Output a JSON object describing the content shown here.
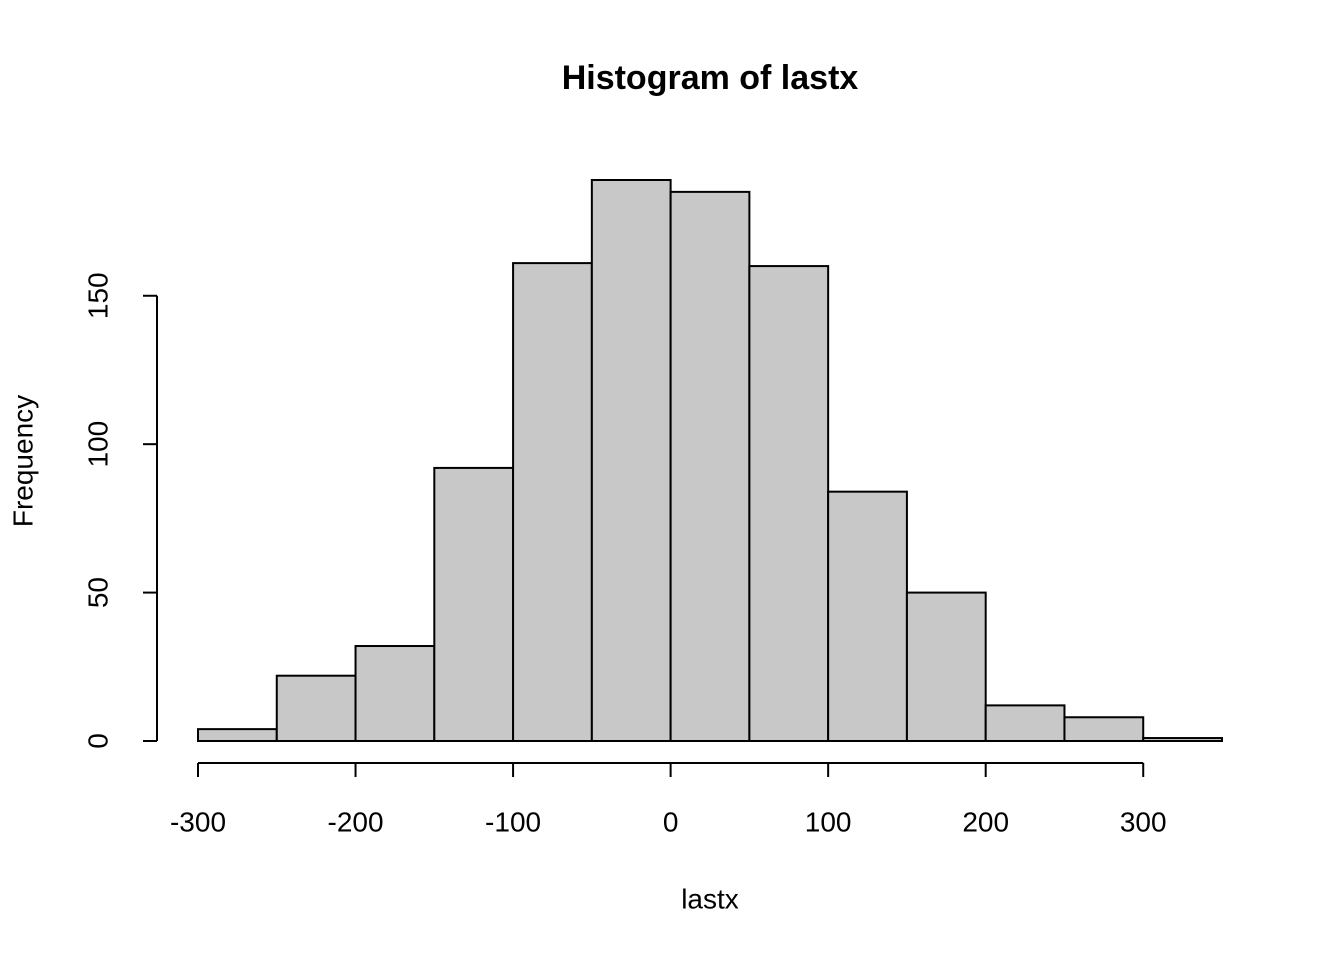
{
  "chart_data": {
    "type": "histogram",
    "title": "Histogram of lastx",
    "x_label": "lastx",
    "y_label": "Frequency",
    "bins": [
      -300,
      -250,
      -200,
      -150,
      -100,
      -50,
      0,
      50,
      100,
      150,
      200,
      250,
      300,
      350
    ],
    "values": [
      4,
      22,
      32,
      92,
      161,
      189,
      185,
      160,
      84,
      50,
      12,
      8,
      1
    ],
    "color": "#c8c8c8",
    "xlim": [
      -300,
      350
    ],
    "ylim": [
      0,
      189
    ],
    "xticks": [
      -300,
      -200,
      -100,
      0,
      100,
      200,
      300
    ],
    "yticks": [
      0,
      50,
      100,
      150
    ]
  }
}
